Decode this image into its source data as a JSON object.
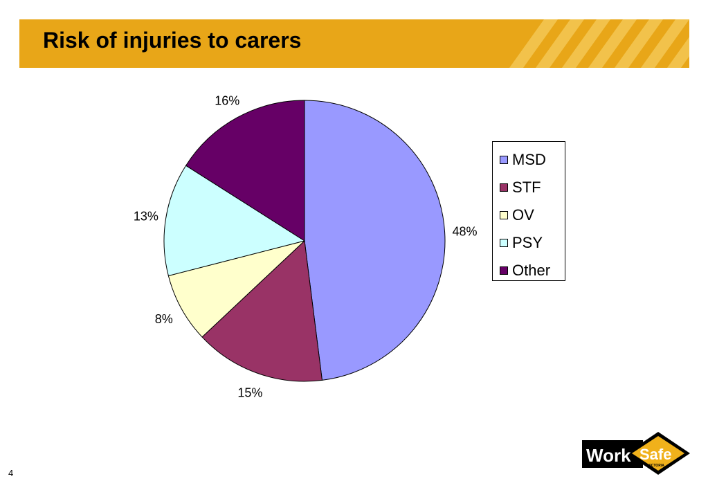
{
  "slide": {
    "title": "Risk of injuries to carers",
    "page_number": "4"
  },
  "logo": {
    "word1": "Work",
    "word2": "Safe",
    "sub": "VICTORIA"
  },
  "colors": {
    "title_bar": "#E8A618",
    "stripe": "#F2C24B"
  },
  "chart_data": {
    "type": "pie",
    "title": "",
    "slices": [
      {
        "name": "MSD",
        "value": 48,
        "label": "48%",
        "color": "#9999FF"
      },
      {
        "name": "STF",
        "value": 15,
        "label": "15%",
        "color": "#993366"
      },
      {
        "name": "OV",
        "value": 8,
        "label": "8%",
        "color": "#FFFFCC"
      },
      {
        "name": "PSY",
        "value": 13,
        "label": "13%",
        "color": "#CCFFFF"
      },
      {
        "name": "Other",
        "value": 16,
        "label": "16%",
        "color": "#660066"
      }
    ],
    "legend_position": "right",
    "start_angle": "12 o'clock",
    "direction": "clockwise"
  }
}
